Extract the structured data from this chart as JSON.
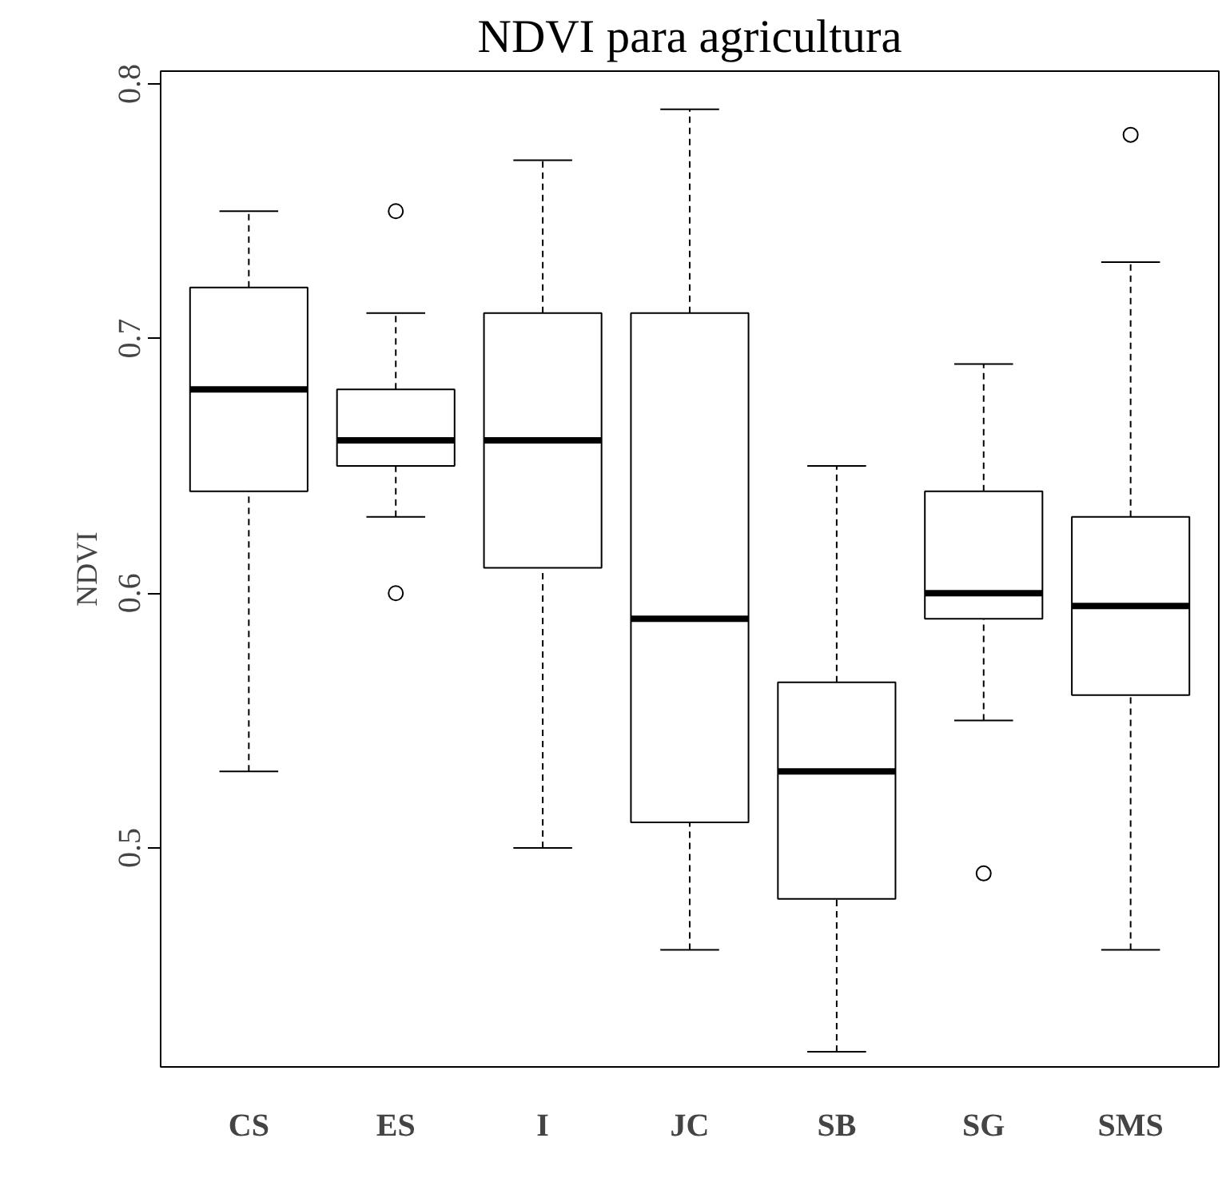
{
  "chart_data": {
    "type": "box",
    "title": "NDVI para agricultura",
    "ylabel": "NDVI",
    "categories": [
      "CS",
      "ES",
      "I",
      "JC",
      "SB",
      "SG",
      "SMS"
    ],
    "boxes": [
      {
        "low": 0.53,
        "q1": 0.64,
        "median": 0.68,
        "q3": 0.72,
        "high": 0.75
      },
      {
        "low": 0.63,
        "q1": 0.65,
        "median": 0.66,
        "q3": 0.68,
        "high": 0.71,
        "outliers": [
          0.75,
          0.6
        ]
      },
      {
        "low": 0.5,
        "q1": 0.61,
        "median": 0.66,
        "q3": 0.71,
        "high": 0.77
      },
      {
        "low": 0.46,
        "q1": 0.51,
        "median": 0.59,
        "q3": 0.71,
        "high": 0.79
      },
      {
        "low": 0.42,
        "q1": 0.48,
        "median": 0.53,
        "q3": 0.565,
        "high": 0.65
      },
      {
        "low": 0.55,
        "q1": 0.59,
        "median": 0.6,
        "q3": 0.64,
        "high": 0.69,
        "outliers": [
          0.49
        ]
      },
      {
        "low": 0.46,
        "q1": 0.56,
        "median": 0.595,
        "q3": 0.63,
        "high": 0.73,
        "outliers": [
          0.78
        ]
      }
    ],
    "ylim": [
      0.414,
      0.805
    ],
    "yticks": [
      0.5,
      0.6,
      0.7,
      0.8
    ]
  }
}
